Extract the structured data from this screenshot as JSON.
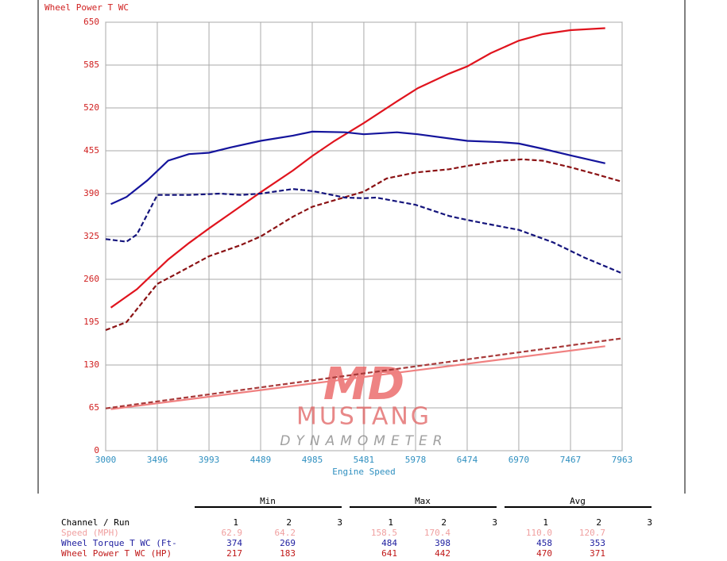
{
  "chart_data": {
    "type": "line",
    "title": "Wheel Power T WC",
    "x_label": "Engine Speed",
    "xlim": [
      3000,
      7963
    ],
    "xticks": [
      3000,
      3496,
      3993,
      4489,
      4985,
      5481,
      5978,
      6474,
      6970,
      7467,
      7963
    ],
    "ylim": [
      0,
      650
    ],
    "yticks": [
      0,
      65,
      130,
      195,
      260,
      325,
      390,
      455,
      520,
      585,
      650
    ],
    "grid": true,
    "series": [
      {
        "name": "Wheel Power run 1",
        "color": "#e0141e",
        "style": "solid",
        "x": [
          3050,
          3300,
          3600,
          3800,
          4000,
          4200,
          4489,
          4800,
          4985,
          5200,
          5481,
          5800,
          6000,
          6300,
          6474,
          6700,
          6970,
          7200,
          7467,
          7800
        ],
        "values": [
          217,
          245,
          290,
          315,
          338,
          360,
          392,
          425,
          447,
          470,
          497,
          530,
          550,
          572,
          583,
          603,
          622,
          632,
          638,
          641
        ]
      },
      {
        "name": "Wheel Power run 2",
        "color": "#8b1214",
        "style": "dashed",
        "x": [
          3000,
          3200,
          3496,
          3700,
          3993,
          4300,
          4489,
          4800,
          4985,
          5200,
          5481,
          5700,
          5978,
          6300,
          6474,
          6800,
          7000,
          7200,
          7467,
          7700,
          7963
        ],
        "values": [
          183,
          195,
          253,
          270,
          295,
          312,
          325,
          355,
          370,
          380,
          393,
          413,
          422,
          427,
          432,
          440,
          442,
          440,
          430,
          420,
          408
        ]
      },
      {
        "name": "Wheel Torque run 1",
        "color": "#14149c",
        "style": "solid",
        "x": [
          3050,
          3200,
          3400,
          3600,
          3800,
          3993,
          4200,
          4489,
          4800,
          4985,
          5300,
          5481,
          5800,
          6000,
          6474,
          6800,
          6970,
          7200,
          7467,
          7800
        ],
        "values": [
          374,
          385,
          410,
          440,
          450,
          452,
          460,
          470,
          478,
          484,
          483,
          480,
          483,
          480,
          470,
          468,
          466,
          458,
          448,
          436
        ]
      },
      {
        "name": "Wheel Torque run 2",
        "color": "#14147c",
        "style": "dashed",
        "x": [
          3000,
          3200,
          3300,
          3496,
          3800,
          4100,
          4300,
          4489,
          4800,
          4985,
          5300,
          5481,
          5600,
          5978,
          6300,
          6474,
          6800,
          6970,
          7300,
          7600,
          7963
        ],
        "values": [
          321,
          317,
          328,
          388,
          388,
          390,
          388,
          390,
          397,
          394,
          384,
          383,
          384,
          373,
          356,
          350,
          340,
          335,
          316,
          293,
          269
        ]
      },
      {
        "name": "Speed run 1",
        "color": "#f08080",
        "style": "solid",
        "x": [
          3050,
          7800
        ],
        "values": [
          62.9,
          158.5
        ]
      },
      {
        "name": "Speed run 2",
        "color": "#a83a3a",
        "style": "dashed",
        "x": [
          3000,
          7963
        ],
        "values": [
          64.2,
          170.4
        ]
      }
    ],
    "watermark": {
      "mark": "MD",
      "line1": "MUSTANG",
      "line2": "DYNAMOMETER"
    }
  },
  "table": {
    "groups": [
      "Min",
      "Max",
      "Avg"
    ],
    "runs": [
      "1",
      "2",
      "3"
    ],
    "channel_header": "Channel / Run",
    "rows": [
      {
        "name": "Speed (MPH)",
        "color": "#f0a0a0",
        "cells": [
          "62.9",
          "64.2",
          "158.5",
          "170.4",
          "110.0",
          "120.7"
        ]
      },
      {
        "name": "Wheel Torque T WC (Ft-",
        "color": "#2020a0",
        "cells": [
          "374",
          "269",
          "484",
          "398",
          "458",
          "353"
        ]
      },
      {
        "name": "Wheel Power T WC (HP)",
        "color": "#c01818",
        "cells": [
          "217",
          "183",
          "641",
          "442",
          "470",
          "371"
        ]
      }
    ]
  }
}
